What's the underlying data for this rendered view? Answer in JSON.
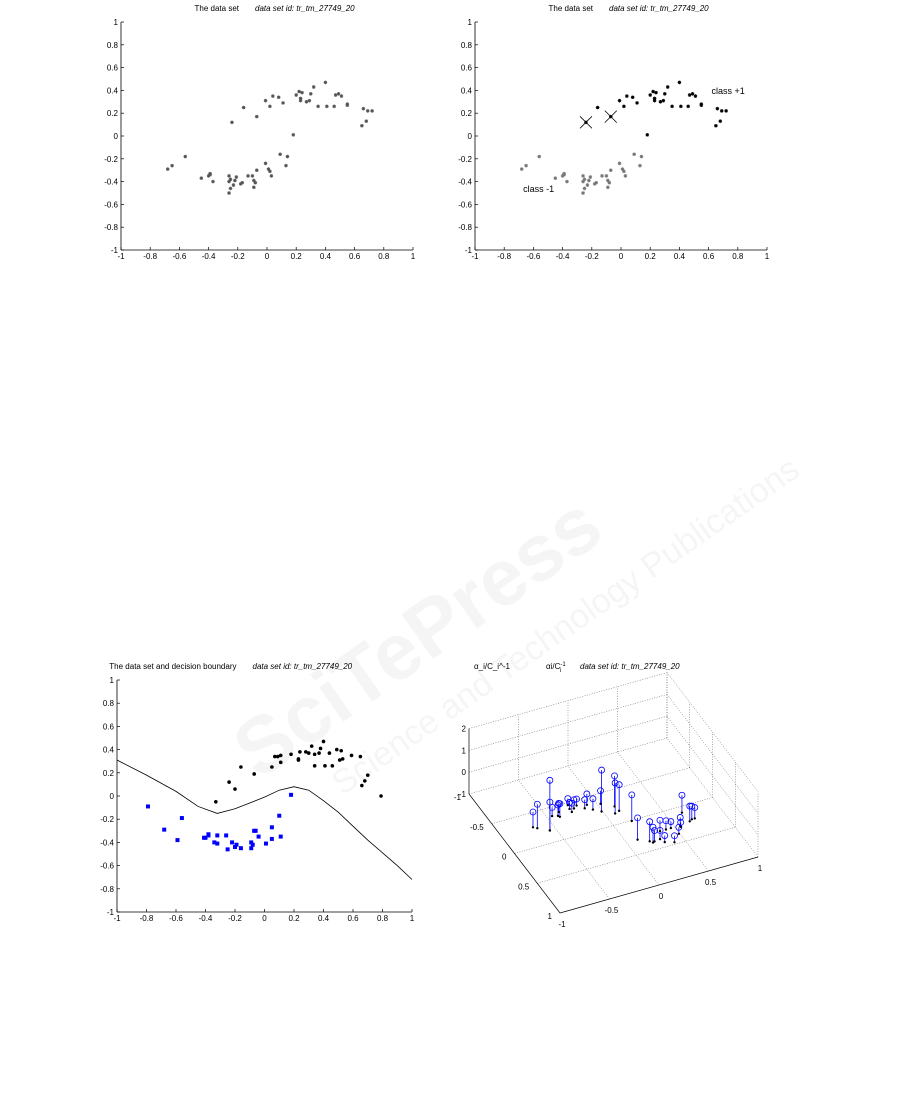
{
  "watermark": {
    "title": "SciTePress",
    "subtitle": "Science and Technology Publications"
  },
  "chart_data": [
    {
      "type": "scatter",
      "title": "The data set",
      "subtitle": "data set id: tr_tm_27749_20",
      "xlim": [
        -1,
        1
      ],
      "ylim": [
        -1,
        1
      ],
      "xticks": [
        "-1",
        "-0.8",
        "-0.6",
        "-0.4",
        "-0.2",
        "0",
        "0.2",
        "0.4",
        "0.6",
        "0.8",
        "1"
      ],
      "yticks": [
        "-1",
        "-0.8",
        "-0.6",
        "-0.4",
        "-0.2",
        "0",
        "0.2",
        "0.4",
        "0.6",
        "0.8",
        "1"
      ],
      "grid": false,
      "marker_color": "#555555",
      "points": [
        [
          -0.68,
          -0.29
        ],
        [
          -0.65,
          -0.26
        ],
        [
          -0.56,
          -0.18
        ],
        [
          -0.45,
          -0.37
        ],
        [
          -0.4,
          -0.35
        ],
        [
          -0.39,
          -0.33
        ],
        [
          -0.39,
          -0.34
        ],
        [
          -0.37,
          -0.4
        ],
        [
          -0.26,
          -0.4
        ],
        [
          -0.26,
          -0.35
        ],
        [
          -0.25,
          -0.38
        ],
        [
          -0.25,
          -0.46
        ],
        [
          -0.26,
          -0.5
        ],
        [
          -0.23,
          -0.43
        ],
        [
          -0.22,
          -0.39
        ],
        [
          -0.21,
          -0.36
        ],
        [
          -0.18,
          -0.42
        ],
        [
          -0.17,
          -0.41
        ],
        [
          -0.13,
          -0.35
        ],
        [
          -0.1,
          -0.35
        ],
        [
          -0.09,
          -0.39
        ],
        [
          -0.08,
          -0.41
        ],
        [
          -0.09,
          -0.45
        ],
        [
          -0.07,
          -0.3
        ],
        [
          -0.01,
          -0.24
        ],
        [
          0.01,
          -0.29
        ],
        [
          0.02,
          -0.31
        ],
        [
          0.03,
          -0.35
        ],
        [
          0.09,
          -0.16
        ],
        [
          0.13,
          -0.26
        ],
        [
          0.14,
          -0.18
        ],
        [
          0.18,
          0.01
        ],
        [
          -0.24,
          0.12
        ],
        [
          -0.16,
          0.25
        ],
        [
          -0.07,
          0.17
        ],
        [
          -0.01,
          0.31
        ],
        [
          0.02,
          0.26
        ],
        [
          0.04,
          0.35
        ],
        [
          0.08,
          0.34
        ],
        [
          0.11,
          0.29
        ],
        [
          0.2,
          0.36
        ],
        [
          0.22,
          0.39
        ],
        [
          0.23,
          0.33
        ],
        [
          0.23,
          0.31
        ],
        [
          0.24,
          0.38
        ],
        [
          0.27,
          0.3
        ],
        [
          0.29,
          0.31
        ],
        [
          0.3,
          0.37
        ],
        [
          0.32,
          0.43
        ],
        [
          0.35,
          0.26
        ],
        [
          0.4,
          0.47
        ],
        [
          0.41,
          0.26
        ],
        [
          0.46,
          0.26
        ],
        [
          0.47,
          0.36
        ],
        [
          0.49,
          0.37
        ],
        [
          0.51,
          0.35
        ],
        [
          0.55,
          0.27
        ],
        [
          0.55,
          0.28
        ],
        [
          0.65,
          0.09
        ],
        [
          0.66,
          0.24
        ],
        [
          0.68,
          0.13
        ],
        [
          0.69,
          0.22
        ],
        [
          0.72,
          0.22
        ]
      ]
    },
    {
      "type": "scatter",
      "title": "The data set",
      "subtitle": "data set id: tr_tm_27749_20",
      "xlim": [
        -1,
        1
      ],
      "ylim": [
        -1,
        1
      ],
      "xticks": [
        "-1",
        "-0.8",
        "-0.6",
        "-0.4",
        "-0.2",
        "0",
        "0.2",
        "0.4",
        "0.6",
        "0.8",
        "1"
      ],
      "yticks": [
        "-1",
        "-0.8",
        "-0.6",
        "-0.4",
        "-0.2",
        "0",
        "0.2",
        "0.4",
        "0.6",
        "0.8",
        "1"
      ],
      "grid": false,
      "annotations": [
        {
          "text": "class +1",
          "x": 0.62,
          "y": 0.37
        },
        {
          "text": "class -1",
          "x": -0.67,
          "y": -0.49
        }
      ],
      "series": [
        {
          "name": "class -1",
          "color": "#777777",
          "points": [
            [
              -0.68,
              -0.29
            ],
            [
              -0.65,
              -0.26
            ],
            [
              -0.56,
              -0.18
            ],
            [
              -0.45,
              -0.37
            ],
            [
              -0.4,
              -0.35
            ],
            [
              -0.39,
              -0.33
            ],
            [
              -0.39,
              -0.34
            ],
            [
              -0.37,
              -0.4
            ],
            [
              -0.26,
              -0.4
            ],
            [
              -0.26,
              -0.35
            ],
            [
              -0.25,
              -0.38
            ],
            [
              -0.25,
              -0.46
            ],
            [
              -0.26,
              -0.5
            ],
            [
              -0.23,
              -0.43
            ],
            [
              -0.22,
              -0.39
            ],
            [
              -0.21,
              -0.36
            ],
            [
              -0.18,
              -0.42
            ],
            [
              -0.17,
              -0.41
            ],
            [
              -0.13,
              -0.35
            ],
            [
              -0.1,
              -0.35
            ],
            [
              -0.09,
              -0.39
            ],
            [
              -0.08,
              -0.41
            ],
            [
              -0.09,
              -0.45
            ],
            [
              -0.07,
              -0.3
            ],
            [
              -0.01,
              -0.24
            ],
            [
              0.01,
              -0.29
            ],
            [
              0.02,
              -0.31
            ],
            [
              0.03,
              -0.35
            ],
            [
              0.09,
              -0.16
            ],
            [
              0.13,
              -0.26
            ],
            [
              0.14,
              -0.18
            ]
          ]
        },
        {
          "name": "class +1",
          "color": "#000000",
          "points": [
            [
              0.18,
              0.01
            ],
            [
              -0.24,
              0.12
            ],
            [
              -0.16,
              0.25
            ],
            [
              -0.07,
              0.17
            ],
            [
              -0.01,
              0.31
            ],
            [
              0.02,
              0.26
            ],
            [
              0.04,
              0.35
            ],
            [
              0.08,
              0.34
            ],
            [
              0.11,
              0.29
            ],
            [
              0.2,
              0.36
            ],
            [
              0.22,
              0.39
            ],
            [
              0.23,
              0.33
            ],
            [
              0.23,
              0.31
            ],
            [
              0.24,
              0.38
            ],
            [
              0.27,
              0.3
            ],
            [
              0.29,
              0.31
            ],
            [
              0.3,
              0.37
            ],
            [
              0.32,
              0.43
            ],
            [
              0.35,
              0.26
            ],
            [
              0.4,
              0.47
            ],
            [
              0.41,
              0.26
            ],
            [
              0.46,
              0.26
            ],
            [
              0.47,
              0.36
            ],
            [
              0.49,
              0.37
            ],
            [
              0.51,
              0.35
            ],
            [
              0.55,
              0.27
            ],
            [
              0.55,
              0.28
            ],
            [
              0.65,
              0.09
            ],
            [
              0.66,
              0.24
            ],
            [
              0.68,
              0.13
            ],
            [
              0.69,
              0.22
            ],
            [
              0.72,
              0.22
            ]
          ]
        }
      ],
      "cross_markers": [
        [
          -0.24,
          0.12
        ],
        [
          -0.07,
          0.17
        ]
      ]
    },
    {
      "type": "scatter",
      "title": "The data set and decision boundary",
      "subtitle": "data set id: tr_tm_27749_20",
      "xlim": [
        -1,
        1
      ],
      "ylim": [
        -1,
        1
      ],
      "xticks": [
        "-1",
        "-0.8",
        "-0.6",
        "-0.4",
        "-0.2",
        "0",
        "0.2",
        "0.4",
        "0.6",
        "0.8",
        "1"
      ],
      "yticks": [
        "-1",
        "-0.8",
        "-0.6",
        "-0.4",
        "-0.2",
        "0",
        "0.2",
        "0.4",
        "0.6",
        "0.8",
        "1"
      ],
      "grid": false,
      "series": [
        {
          "name": "class -1",
          "color": "#0000ff",
          "marker": "square",
          "points": [
            [
              -0.79,
              -0.09
            ],
            [
              -0.68,
              -0.29
            ],
            [
              -0.59,
              -0.38
            ],
            [
              -0.56,
              -0.19
            ],
            [
              -0.41,
              -0.36
            ],
            [
              -0.4,
              -0.36
            ],
            [
              -0.38,
              -0.34
            ],
            [
              -0.38,
              -0.33
            ],
            [
              -0.34,
              -0.4
            ],
            [
              -0.32,
              -0.41
            ],
            [
              -0.32,
              -0.34
            ],
            [
              -0.26,
              -0.34
            ],
            [
              -0.25,
              -0.46
            ],
            [
              -0.22,
              -0.4
            ],
            [
              -0.2,
              -0.44
            ],
            [
              -0.19,
              -0.42
            ],
            [
              -0.16,
              -0.45
            ],
            [
              -0.09,
              -0.45
            ],
            [
              -0.09,
              -0.4
            ],
            [
              -0.08,
              -0.42
            ],
            [
              -0.07,
              -0.3
            ],
            [
              -0.06,
              -0.3
            ],
            [
              -0.04,
              -0.35
            ],
            [
              0.01,
              -0.41
            ],
            [
              0.05,
              -0.27
            ],
            [
              0.05,
              -0.37
            ],
            [
              0.1,
              -0.17
            ],
            [
              0.11,
              -0.35
            ],
            [
              0.18,
              0.01
            ]
          ]
        },
        {
          "name": "class +1",
          "color": "#000000",
          "marker": "dot",
          "points": [
            [
              -0.33,
              -0.05
            ],
            [
              -0.24,
              0.12
            ],
            [
              -0.2,
              0.06
            ],
            [
              -0.16,
              0.25
            ],
            [
              -0.07,
              0.19
            ],
            [
              0.05,
              0.25
            ],
            [
              0.07,
              0.34
            ],
            [
              0.09,
              0.34
            ],
            [
              0.11,
              0.35
            ],
            [
              0.11,
              0.29
            ],
            [
              0.18,
              0.36
            ],
            [
              0.23,
              0.32
            ],
            [
              0.23,
              0.31
            ],
            [
              0.24,
              0.38
            ],
            [
              0.28,
              0.38
            ],
            [
              0.3,
              0.37
            ],
            [
              0.32,
              0.43
            ],
            [
              0.34,
              0.26
            ],
            [
              0.34,
              0.36
            ],
            [
              0.37,
              0.37
            ],
            [
              0.38,
              0.41
            ],
            [
              0.4,
              0.47
            ],
            [
              0.41,
              0.26
            ],
            [
              0.44,
              0.37
            ],
            [
              0.46,
              0.26
            ],
            [
              0.49,
              0.4
            ],
            [
              0.51,
              0.31
            ],
            [
              0.52,
              0.39
            ],
            [
              0.53,
              0.32
            ],
            [
              0.59,
              0.35
            ],
            [
              0.65,
              0.34
            ],
            [
              0.66,
              0.09
            ],
            [
              0.68,
              0.13
            ],
            [
              0.7,
              0.18
            ],
            [
              0.79,
              0.0
            ]
          ]
        }
      ],
      "boundary": [
        [
          -1,
          0.31
        ],
        [
          -0.8,
          0.18
        ],
        [
          -0.6,
          0.04
        ],
        [
          -0.45,
          -0.09
        ],
        [
          -0.32,
          -0.15
        ],
        [
          -0.2,
          -0.11
        ],
        [
          0,
          -0.01
        ],
        [
          0.1,
          0.05
        ],
        [
          0.2,
          0.08
        ],
        [
          0.3,
          0.05
        ],
        [
          0.4,
          -0.04
        ],
        [
          0.5,
          -0.14
        ],
        [
          0.6,
          -0.26
        ],
        [
          0.7,
          -0.38
        ],
        [
          0.8,
          -0.49
        ],
        [
          0.9,
          -0.6
        ],
        [
          1,
          -0.72
        ]
      ]
    },
    {
      "type": "stem3d",
      "title": "α_i/C_i^-1",
      "title_main": "αi/C",
      "title_sup": "-1",
      "title_sub": "i",
      "subtitle": "data set id: tr_tm_27749_20",
      "xlim": [
        -1,
        1
      ],
      "ylim": [
        -1,
        1
      ],
      "zlim": [
        -1,
        2
      ],
      "xticks": [
        "-1",
        "-0.5",
        "0",
        "0.5",
        "1"
      ],
      "yticks": [
        "-1",
        "-0.5",
        "0",
        "0.5",
        "1"
      ],
      "zticks": [
        "-1",
        "0",
        "1",
        "2"
      ],
      "grid": true,
      "stem_color": "#0000ff",
      "points": [
        [
          -0.68,
          -0.29,
          -0.3
        ],
        [
          -0.65,
          -0.26,
          0.1
        ],
        [
          -0.56,
          -0.18,
          1.3
        ],
        [
          -0.56,
          -0.18,
          0.3
        ],
        [
          -0.45,
          -0.37,
          -0.6
        ],
        [
          -0.4,
          -0.35,
          -0.5
        ],
        [
          -0.39,
          -0.33,
          -0.4
        ],
        [
          -0.37,
          -0.4,
          -0.6
        ],
        [
          -0.26,
          -0.4,
          -0.7
        ],
        [
          -0.26,
          -0.35,
          -0.6
        ],
        [
          -0.25,
          -0.46,
          -0.7
        ],
        [
          -0.22,
          -0.39,
          -0.6
        ],
        [
          -0.18,
          -0.42,
          -0.7
        ],
        [
          -0.13,
          -0.35,
          -0.6
        ],
        [
          -0.09,
          -0.39,
          -0.5
        ],
        [
          -0.07,
          -0.3,
          -0.5
        ],
        [
          -0.01,
          -0.24,
          0.9
        ],
        [
          0.03,
          -0.35,
          -0.4
        ],
        [
          0.09,
          -0.16,
          0.4
        ],
        [
          0.13,
          -0.26,
          0.4
        ],
        [
          0.14,
          -0.18,
          0.2
        ],
        [
          0.18,
          0.01,
          0.2
        ],
        [
          0.11,
          0.29,
          0.0
        ],
        [
          0.2,
          0.36,
          -0.1
        ],
        [
          0.22,
          0.39,
          -0.3
        ],
        [
          0.24,
          0.38,
          -0.5
        ],
        [
          0.3,
          0.37,
          -0.6
        ],
        [
          0.32,
          0.43,
          -0.7
        ],
        [
          0.35,
          0.26,
          -0.5
        ],
        [
          0.4,
          0.47,
          -0.7
        ],
        [
          0.41,
          0.26,
          -0.6
        ],
        [
          0.46,
          0.26,
          -0.7
        ],
        [
          0.49,
          0.37,
          -0.7
        ],
        [
          0.55,
          0.27,
          -0.6
        ],
        [
          0.55,
          0.28,
          -0.8
        ],
        [
          0.65,
          0.09,
          -0.2
        ],
        [
          0.66,
          0.24,
          -0.3
        ],
        [
          0.69,
          0.22,
          -0.4
        ],
        [
          0.72,
          0.22,
          -0.5
        ]
      ]
    }
  ]
}
